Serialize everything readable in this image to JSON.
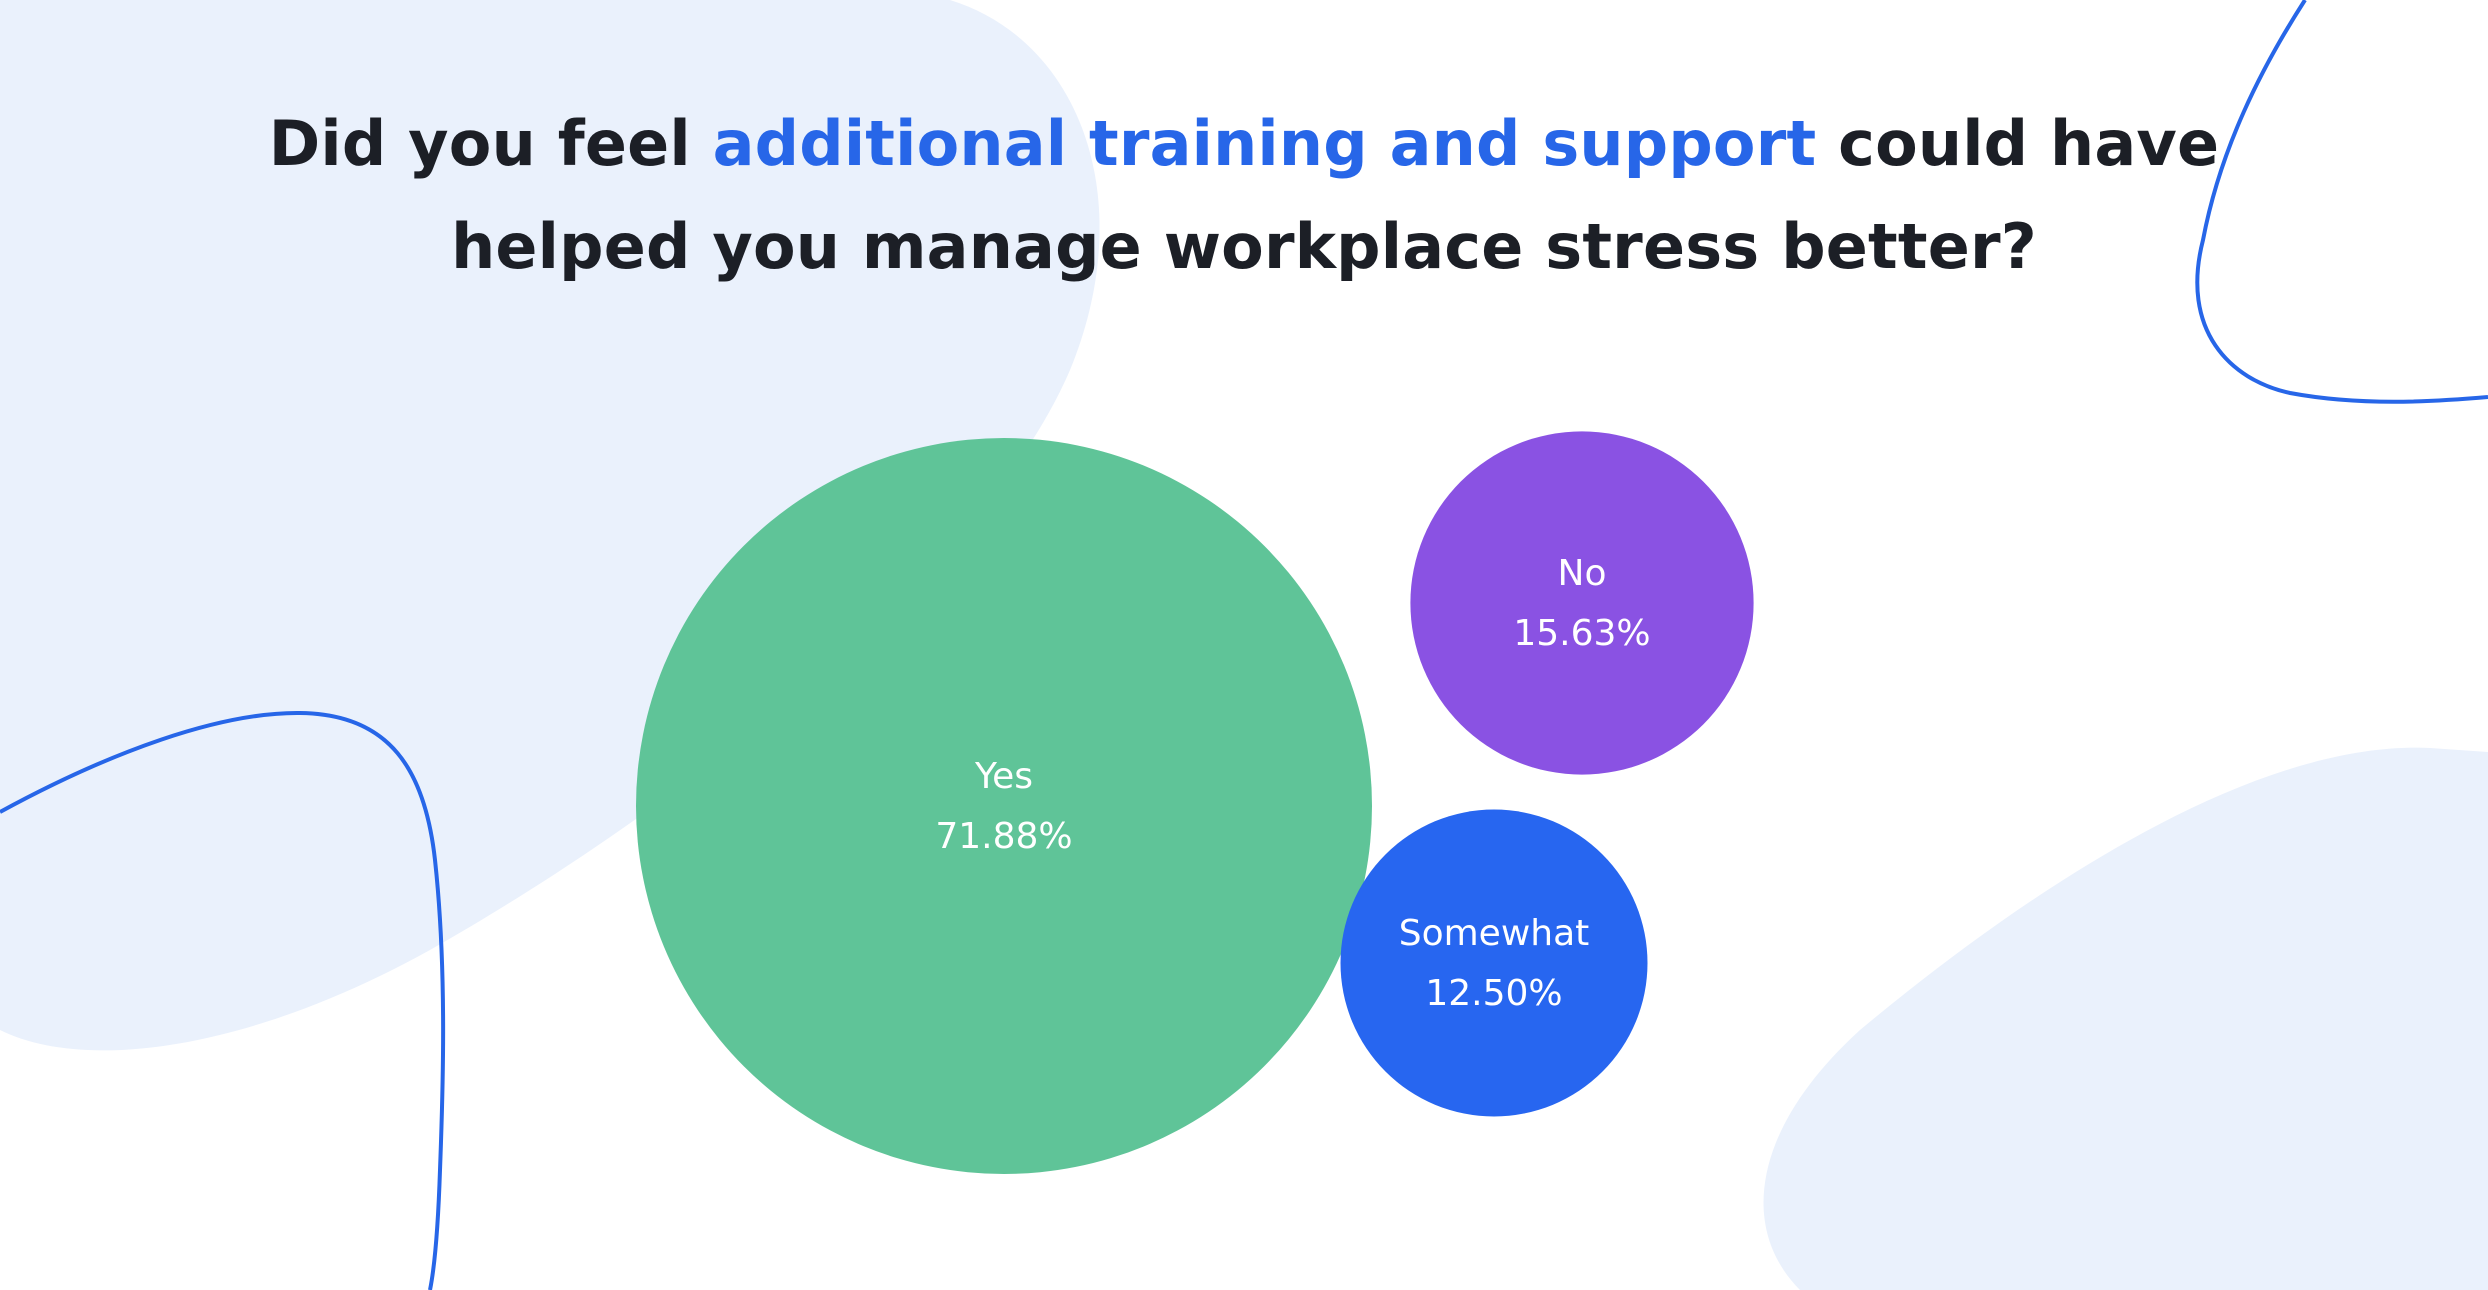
{
  "title": {
    "part1": "Did you feel ",
    "highlight": "additional training and support",
    "part2": " could have helped you manage workplace stress better?"
  },
  "colors": {
    "title_text": "#1c1f26",
    "title_highlight": "#2766e8",
    "background_blob": "#eaf1fc",
    "decor_line": "#2766e8"
  },
  "chart_data": {
    "type": "bubble",
    "unit": "%",
    "categories": [
      "Yes",
      "No",
      "Somewhat"
    ],
    "values": [
      71.88,
      15.63,
      12.5
    ],
    "value_labels": [
      "71.88%",
      "15.63%",
      "12.50%"
    ],
    "colors": [
      "#5fc498",
      "#8a52e3",
      "#2766f0"
    ]
  }
}
